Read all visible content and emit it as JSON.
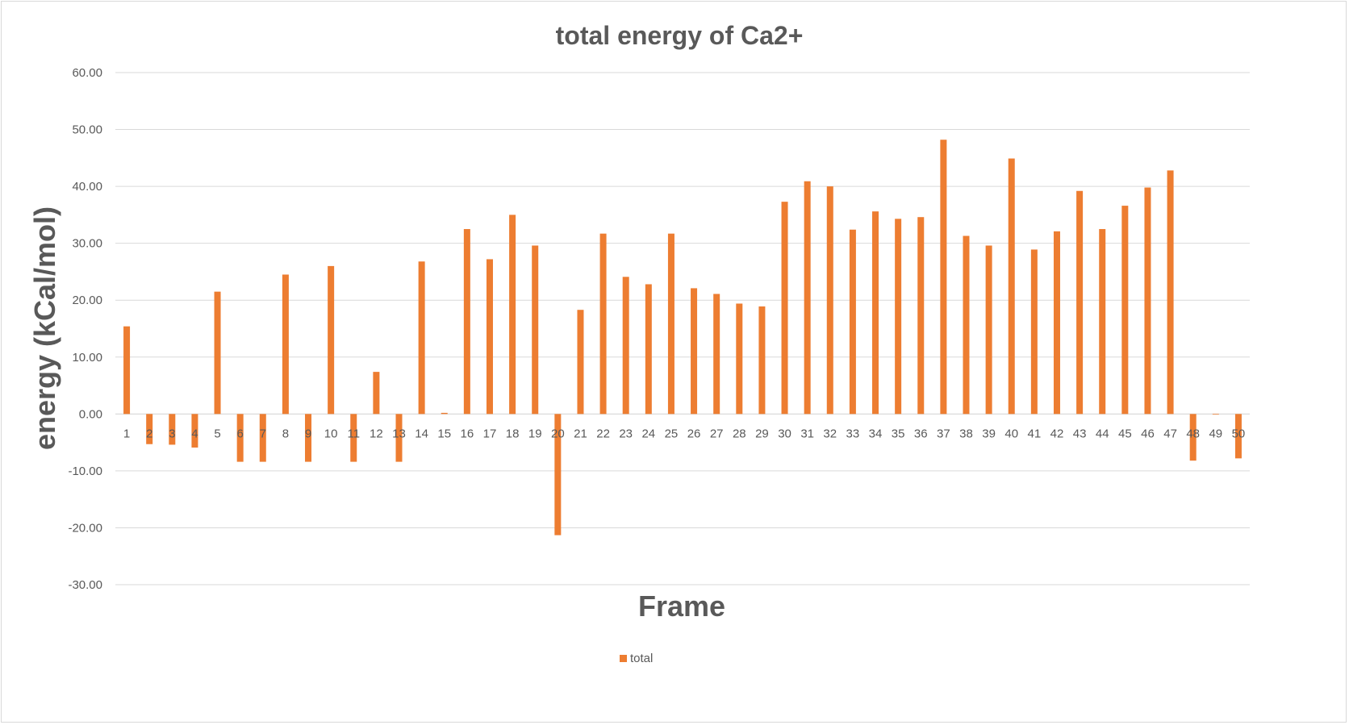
{
  "chart_data": {
    "type": "bar",
    "title": "total energy of Ca2+",
    "xlabel": "Frame",
    "ylabel": "energy (kCal/mol)",
    "ylim": [
      -30,
      60
    ],
    "yticks": [
      "60.00",
      "50.00",
      "40.00",
      "30.00",
      "20.00",
      "10.00",
      "0.00",
      "-10.00",
      "-20.00",
      "-30.00"
    ],
    "grid": true,
    "legend_position": "bottom",
    "categories": [
      "1",
      "2",
      "3",
      "4",
      "5",
      "6",
      "7",
      "8",
      "9",
      "10",
      "11",
      "12",
      "13",
      "14",
      "15",
      "16",
      "17",
      "18",
      "19",
      "20",
      "21",
      "22",
      "23",
      "24",
      "25",
      "26",
      "27",
      "28",
      "29",
      "30",
      "31",
      "32",
      "33",
      "34",
      "35",
      "36",
      "37",
      "38",
      "39",
      "40",
      "41",
      "42",
      "43",
      "44",
      "45",
      "46",
      "47",
      "48",
      "49",
      "50"
    ],
    "series": [
      {
        "name": "total",
        "color": "#ED7D31",
        "values": [
          15.4,
          -5.3,
          -5.4,
          -5.9,
          21.5,
          -8.4,
          -8.4,
          24.5,
          -8.4,
          26.0,
          -8.4,
          7.4,
          -8.4,
          26.8,
          0.2,
          32.5,
          27.2,
          35.0,
          29.6,
          -21.3,
          18.3,
          31.7,
          24.1,
          22.8,
          31.7,
          22.1,
          21.1,
          19.4,
          18.9,
          37.3,
          40.9,
          40.0,
          32.4,
          35.6,
          34.3,
          34.6,
          48.2,
          31.3,
          29.6,
          44.9,
          28.9,
          32.1,
          39.2,
          32.5,
          36.6,
          39.8,
          42.8,
          -8.2,
          -0.1,
          -7.8
        ]
      }
    ]
  }
}
